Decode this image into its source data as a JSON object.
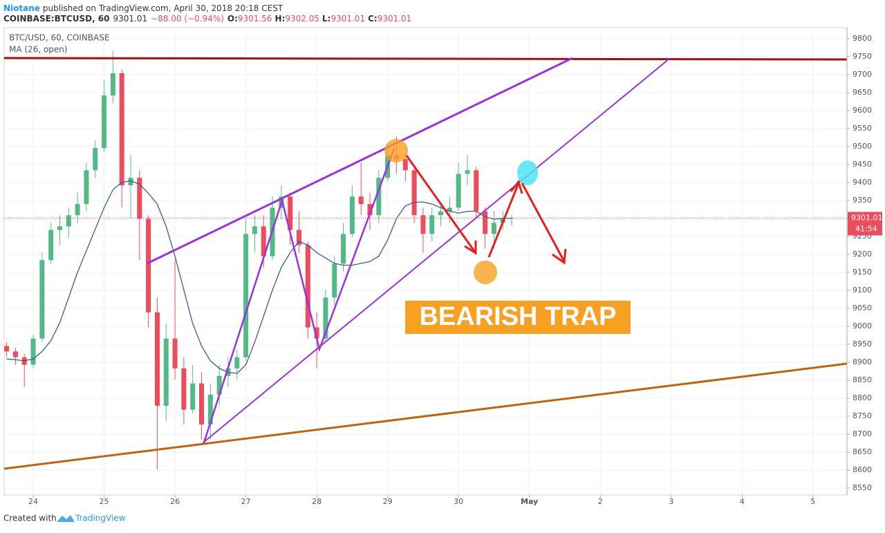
{
  "header": {
    "author": "Niotane",
    "published": "published on TradingView.com, April 30, 2018 20:18 CEST",
    "symbol": "COINBASE:BTCUSD, 60",
    "last": "9301.01",
    "change": "−88.00 (−0.94%)",
    "ohlc": [
      {
        "label": "O:",
        "value": "9301.56"
      },
      {
        "label": "H:",
        "value": "9302.05"
      },
      {
        "label": "L:",
        "value": "9301.01"
      },
      {
        "label": "C:",
        "value": "9301.01"
      }
    ]
  },
  "footer": {
    "created": "Created with",
    "brand": "TradingView"
  },
  "chart_data": {
    "type": "candlestick",
    "title": "BTC/USD, 60, COINBASE",
    "up_color": "#53b987",
    "down_color": "#eb4d5c",
    "grid": true,
    "x": [
      23.625,
      23.75,
      23.875,
      24,
      24.125,
      24.25,
      24.375,
      24.5,
      24.625,
      24.75,
      24.875,
      25,
      25.125,
      25.25,
      25.375,
      25.5,
      25.625,
      25.75,
      25.875,
      26,
      26.125,
      26.25,
      26.375,
      26.5,
      26.625,
      26.75,
      26.875,
      27,
      27.125,
      27.25,
      27.375,
      27.5,
      27.625,
      27.75,
      27.875,
      28,
      28.125,
      28.25,
      28.375,
      28.5,
      28.625,
      28.75,
      28.875,
      29,
      29.125,
      29.25,
      29.375,
      29.5,
      29.625,
      29.75,
      29.875,
      30,
      30.125,
      30.25,
      30.375,
      30.5,
      30.625,
      30.75
    ],
    "open": [
      8945,
      8930,
      8914,
      8893,
      8966,
      9184,
      9268,
      9278,
      9309,
      9340,
      9434,
      9496,
      9642,
      9704,
      9392,
      9413,
      9299,
      9039,
      8779,
      8966,
      8883,
      8768,
      8841,
      8727,
      8810,
      8862,
      8883,
      8914,
      9257,
      9278,
      9195,
      9330,
      9361,
      9268,
      9226,
      8997,
      8966,
      9080,
      9174,
      9257,
      9361,
      9340,
      9309,
      9413,
      9476,
      9465,
      9434,
      9309,
      9257,
      9309,
      9320,
      9330,
      9424,
      9434,
      9320,
      9257,
      9288,
      9299
    ],
    "high": [
      8956,
      8940,
      8924,
      8976,
      9205,
      9288,
      9309,
      9330,
      9372,
      9455,
      9517,
      9684,
      9767,
      9715,
      9476,
      9434,
      9309,
      9080,
      9008,
      9184,
      8914,
      8893,
      8872,
      8841,
      8893,
      8914,
      8935,
      9299,
      9309,
      9309,
      9361,
      9392,
      9372,
      9320,
      9236,
      9039,
      9101,
      9195,
      9288,
      9392,
      9455,
      9372,
      9434,
      9507,
      9528,
      9486,
      9444,
      9330,
      9330,
      9340,
      9361,
      9455,
      9476,
      9444,
      9330,
      9320,
      9320,
      9310
    ],
    "low": [
      8914,
      8893,
      8831,
      8883,
      8956,
      9174,
      9226,
      9247,
      9288,
      9320,
      9413,
      9486,
      9621,
      9330,
      9299,
      9184,
      8997,
      8602,
      8737,
      8852,
      8727,
      8758,
      8685,
      8685,
      8779,
      8831,
      8852,
      8904,
      9205,
      9164,
      9184,
      9299,
      9226,
      9205,
      8966,
      8883,
      8956,
      9060,
      9153,
      9247,
      9309,
      9268,
      9288,
      9403,
      9424,
      9403,
      9288,
      9205,
      9236,
      9278,
      9288,
      9320,
      9392,
      9299,
      9216,
      9216,
      9268,
      9280
    ],
    "close": [
      8930,
      8914,
      8893,
      8966,
      9184,
      9268,
      9278,
      9309,
      9340,
      9434,
      9496,
      9642,
      9704,
      9392,
      9413,
      9299,
      9039,
      8779,
      8966,
      8883,
      8768,
      8841,
      8727,
      8810,
      8862,
      8883,
      8914,
      9257,
      9278,
      9195,
      9330,
      9361,
      9268,
      9226,
      8997,
      8966,
      9080,
      9174,
      9257,
      9361,
      9340,
      9309,
      9413,
      9476,
      9465,
      9434,
      9309,
      9257,
      9309,
      9320,
      9330,
      9424,
      9434,
      9320,
      9257,
      9288,
      9299,
      9301.01
    ],
    "ma": {
      "name": "MA (26, open)",
      "color": "#3b5998",
      "values": [
        8909,
        8907,
        8904,
        8909,
        8930,
        8960,
        9010,
        9080,
        9150,
        9210,
        9270,
        9330,
        9380,
        9400,
        9405,
        9395,
        9370,
        9340,
        9278,
        9195,
        9101,
        9008,
        8945,
        8904,
        8883,
        8872,
        8869,
        8893,
        8956,
        9028,
        9101,
        9164,
        9205,
        9236,
        9226,
        9205,
        9190,
        9175,
        9170,
        9170,
        9175,
        9180,
        9195,
        9240,
        9300,
        9335,
        9345,
        9346,
        9340,
        9330,
        9320,
        9315,
        9320,
        9320,
        9305,
        9298,
        9300,
        9301
      ]
    },
    "last_price": {
      "label": "9301.01",
      "countdown": "41:54",
      "color": "#eb4d5c"
    },
    "annotation": "BEARISH TRAP",
    "xlim": [
      23.59,
      35.48
    ],
    "xticks": [
      24,
      25,
      26,
      27,
      28,
      29,
      30,
      {
        "value": 31,
        "label": "May"
      },
      {
        "value": 32,
        "label": "2"
      },
      {
        "value": 33,
        "label": "3"
      },
      {
        "value": 34,
        "label": "4"
      },
      {
        "value": 35,
        "label": "5"
      }
    ],
    "ylim": [
      8530.8,
      9830.8
    ],
    "yticks": [
      8550,
      8600,
      8650,
      8700,
      8750,
      8800,
      8850,
      8900,
      8950,
      9000,
      9050,
      9100,
      9150,
      9200,
      9250,
      9300,
      9350,
      9400,
      9450,
      9500,
      9550,
      9600,
      9650,
      9700,
      9750,
      9800
    ]
  }
}
